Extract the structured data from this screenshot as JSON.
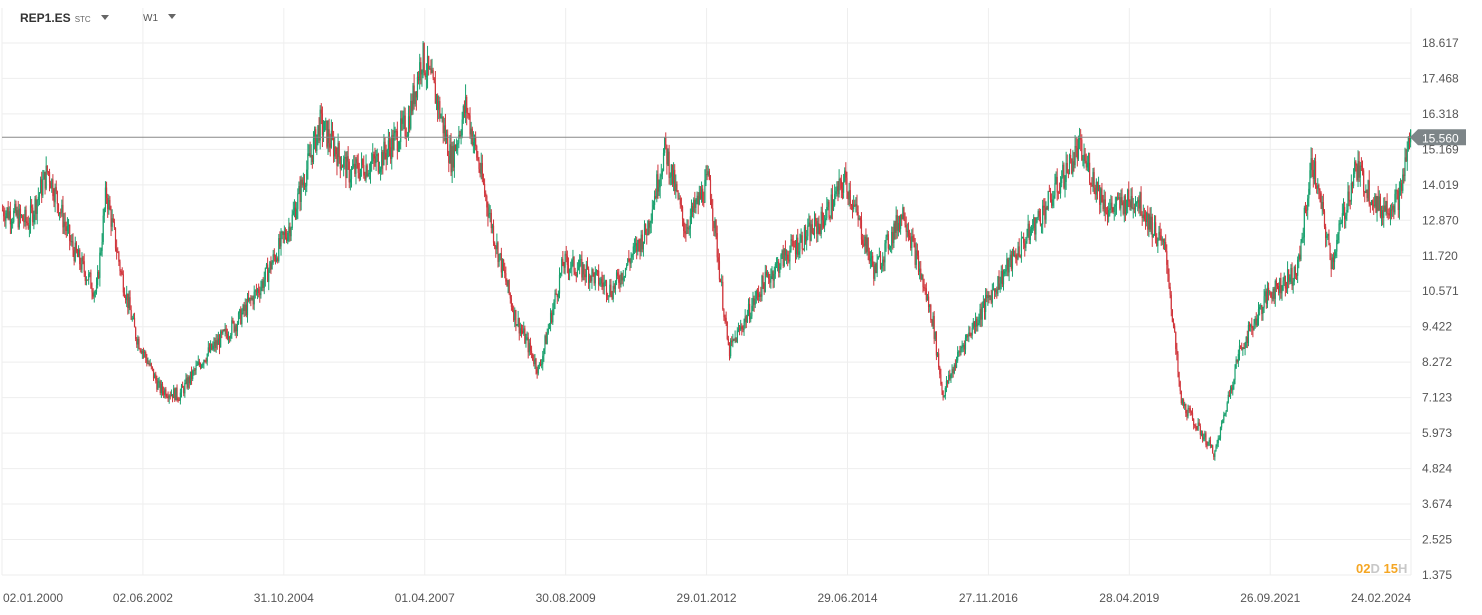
{
  "toolbar": {
    "symbol": "REP1.ES",
    "symbol_type": "STC",
    "timeframe": "W1"
  },
  "countdown": {
    "days": "02",
    "day_unit": "D",
    "hours": "15",
    "hour_unit": "H"
  },
  "colors": {
    "up": "#1aa16e",
    "down": "#d0363c",
    "grid": "#eeeeee",
    "price_line": "#888888",
    "price_badge": "#7d8588"
  },
  "chart_data": {
    "type": "candlestick",
    "symbol": "REP1.ES",
    "timeframe": "W1",
    "ylim": [
      1.375,
      19.75
    ],
    "y_ticks": [
      "18.617",
      "17.468",
      "16.318",
      "15.169",
      "14.019",
      "12.870",
      "11.720",
      "10.571",
      "9.422",
      "8.272",
      "7.123",
      "5.973",
      "4.824",
      "3.674",
      "2.525",
      "1.375"
    ],
    "x_ticks": [
      "02.01.2000",
      "02.06.2002",
      "31.10.2004",
      "01.04.2007",
      "30.08.2009",
      "29.01.2012",
      "29.06.2014",
      "27.11.2016",
      "28.04.2019",
      "26.09.2021",
      "24.02.2024"
    ],
    "x_range": [
      "2000-01-02",
      "2024-02-24"
    ],
    "last_price": "15.560",
    "closes_approx": [
      {
        "date": "2000-01",
        "close": 13.2
      },
      {
        "date": "2000-06",
        "close": 12.8
      },
      {
        "date": "2000-10",
        "close": 14.5
      },
      {
        "date": "2001-03",
        "close": 12.0
      },
      {
        "date": "2001-08",
        "close": 10.5
      },
      {
        "date": "2001-10",
        "close": 13.8
      },
      {
        "date": "2002-01",
        "close": 11.2
      },
      {
        "date": "2002-04",
        "close": 9.2
      },
      {
        "date": "2002-09",
        "close": 7.4
      },
      {
        "date": "2003-01",
        "close": 7.2
      },
      {
        "date": "2003-06",
        "close": 8.4
      },
      {
        "date": "2004-01",
        "close": 9.6
      },
      {
        "date": "2004-06",
        "close": 10.8
      },
      {
        "date": "2004-12",
        "close": 12.8
      },
      {
        "date": "2005-06",
        "close": 16.0
      },
      {
        "date": "2005-12",
        "close": 14.4
      },
      {
        "date": "2006-06",
        "close": 14.8
      },
      {
        "date": "2006-12",
        "close": 16.0
      },
      {
        "date": "2007-03",
        "close": 18.2
      },
      {
        "date": "2007-06",
        "close": 16.8
      },
      {
        "date": "2007-09",
        "close": 14.8
      },
      {
        "date": "2007-12",
        "close": 16.6
      },
      {
        "date": "2008-06",
        "close": 12.2
      },
      {
        "date": "2008-10",
        "close": 9.8
      },
      {
        "date": "2009-03",
        "close": 8.0
      },
      {
        "date": "2009-08",
        "close": 11.5
      },
      {
        "date": "2010-01",
        "close": 11.2
      },
      {
        "date": "2010-06",
        "close": 10.6
      },
      {
        "date": "2011-01",
        "close": 12.5
      },
      {
        "date": "2011-05",
        "close": 15.2
      },
      {
        "date": "2011-09",
        "close": 12.6
      },
      {
        "date": "2012-02",
        "close": 14.2
      },
      {
        "date": "2012-06",
        "close": 8.6
      },
      {
        "date": "2013-01",
        "close": 10.8
      },
      {
        "date": "2013-06",
        "close": 11.8
      },
      {
        "date": "2014-01",
        "close": 12.8
      },
      {
        "date": "2014-06",
        "close": 14.2
      },
      {
        "date": "2014-12",
        "close": 11.2
      },
      {
        "date": "2015-06",
        "close": 13.2
      },
      {
        "date": "2015-12",
        "close": 9.6
      },
      {
        "date": "2016-02",
        "close": 7.2
      },
      {
        "date": "2016-06",
        "close": 8.8
      },
      {
        "date": "2016-12",
        "close": 10.5
      },
      {
        "date": "2017-06",
        "close": 12.0
      },
      {
        "date": "2017-12",
        "close": 13.5
      },
      {
        "date": "2018-06",
        "close": 15.2
      },
      {
        "date": "2018-12",
        "close": 13.2
      },
      {
        "date": "2019-06",
        "close": 13.6
      },
      {
        "date": "2019-12",
        "close": 11.8
      },
      {
        "date": "2020-03",
        "close": 7.0
      },
      {
        "date": "2020-10",
        "close": 5.3
      },
      {
        "date": "2021-03",
        "close": 8.6
      },
      {
        "date": "2021-09",
        "close": 10.5
      },
      {
        "date": "2022-03",
        "close": 11.2
      },
      {
        "date": "2022-06",
        "close": 14.8
      },
      {
        "date": "2022-10",
        "close": 11.5
      },
      {
        "date": "2023-03",
        "close": 14.6
      },
      {
        "date": "2023-08",
        "close": 13.2
      },
      {
        "date": "2023-12",
        "close": 13.6
      },
      {
        "date": "2024-02",
        "close": 15.56
      }
    ]
  }
}
